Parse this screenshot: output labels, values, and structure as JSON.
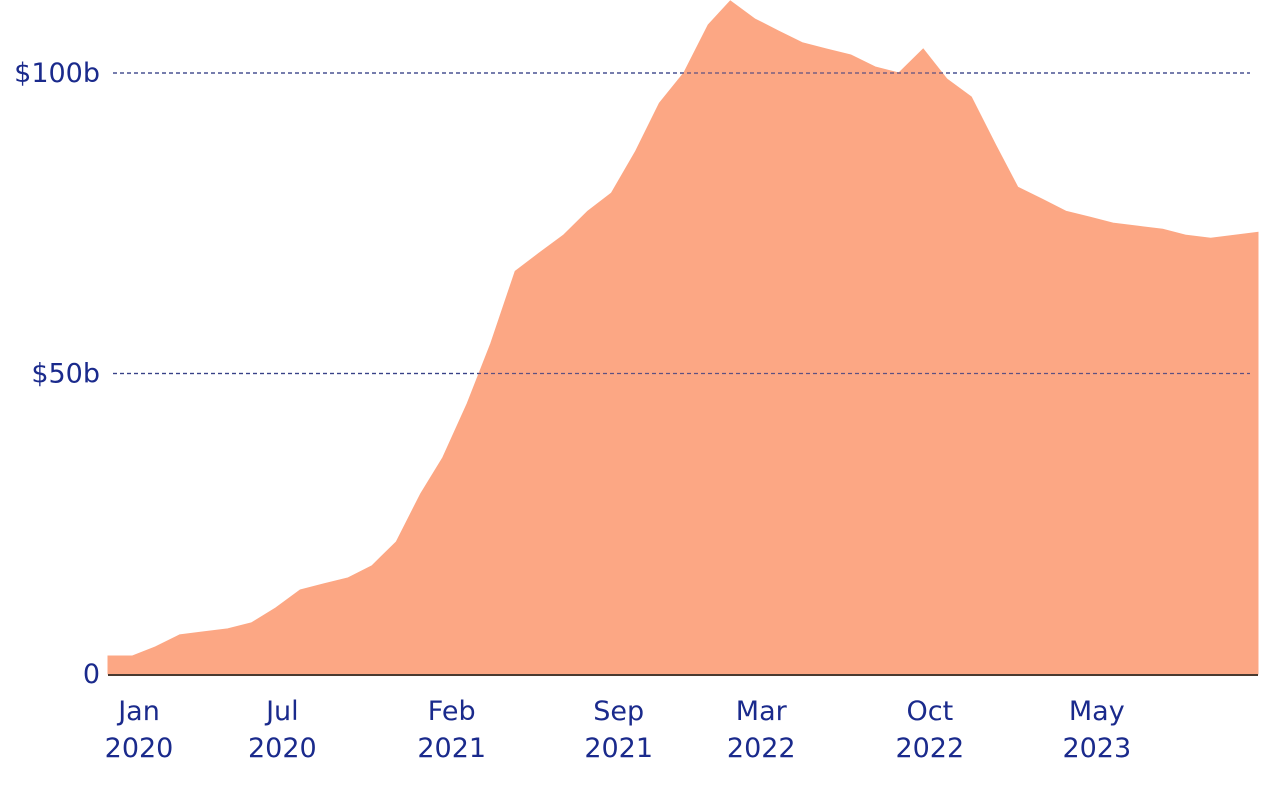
{
  "chart_data": {
    "type": "area",
    "title": "",
    "xlabel": "",
    "ylabel": "",
    "y_unit": "$b",
    "ylim": [
      0,
      110
    ],
    "xlim": [
      "2020-01-01",
      "2023-12-31"
    ],
    "grid": true,
    "grid_style": "dashed",
    "legend": false,
    "colors": {
      "area": "#fca784",
      "axis_text": "#1a2a8c",
      "grid": "#2a3580",
      "baseline": "#4a3a30"
    },
    "y_ticks": [
      {
        "value": 0,
        "label": "0"
      },
      {
        "value": 50,
        "label": "$50b"
      },
      {
        "value": 100,
        "label": "$100b"
      }
    ],
    "x_ticks": [
      {
        "date": "2020-01-01",
        "month": "Jan",
        "year": "2020"
      },
      {
        "date": "2020-07-01",
        "month": "Jul",
        "year": "2020"
      },
      {
        "date": "2021-02-01",
        "month": "Feb",
        "year": "2021"
      },
      {
        "date": "2021-09-01",
        "month": "Sep",
        "year": "2021"
      },
      {
        "date": "2022-03-01",
        "month": "Mar",
        "year": "2022"
      },
      {
        "date": "2022-10-01",
        "month": "Oct",
        "year": "2022"
      },
      {
        "date": "2023-05-01",
        "month": "May",
        "year": "2023"
      }
    ],
    "series": [
      {
        "points": [
          [
            "2020-01-01",
            3
          ],
          [
            "2020-02-01",
            3
          ],
          [
            "2020-03-01",
            4.5
          ],
          [
            "2020-04-01",
            6.5
          ],
          [
            "2020-05-01",
            7
          ],
          [
            "2020-06-01",
            7.5
          ],
          [
            "2020-07-01",
            8.5
          ],
          [
            "2020-08-01",
            11
          ],
          [
            "2020-09-01",
            14
          ],
          [
            "2020-10-01",
            15
          ],
          [
            "2020-11-01",
            16
          ],
          [
            "2020-12-01",
            18
          ],
          [
            "2021-01-01",
            22
          ],
          [
            "2021-02-01",
            30
          ],
          [
            "2021-03-01",
            36
          ],
          [
            "2021-04-01",
            45
          ],
          [
            "2021-05-01",
            55
          ],
          [
            "2021-06-01",
            67
          ],
          [
            "2021-07-01",
            70
          ],
          [
            "2021-08-01",
            73
          ],
          [
            "2021-09-01",
            77
          ],
          [
            "2021-10-01",
            80
          ],
          [
            "2021-11-01",
            87
          ],
          [
            "2021-12-01",
            95
          ],
          [
            "2022-01-01",
            100
          ],
          [
            "2022-02-01",
            108
          ],
          [
            "2022-03-01",
            112
          ],
          [
            "2022-04-01",
            109
          ],
          [
            "2022-05-01",
            107
          ],
          [
            "2022-06-01",
            105
          ],
          [
            "2022-07-01",
            104
          ],
          [
            "2022-08-01",
            103
          ],
          [
            "2022-09-01",
            101
          ],
          [
            "2022-10-01",
            100
          ],
          [
            "2022-11-01",
            104
          ],
          [
            "2022-12-01",
            99
          ],
          [
            "2023-01-01",
            96
          ],
          [
            "2023-02-01",
            88
          ],
          [
            "2023-03-01",
            81
          ],
          [
            "2023-04-01",
            79
          ],
          [
            "2023-05-01",
            77
          ],
          [
            "2023-06-01",
            76
          ],
          [
            "2023-07-01",
            75
          ],
          [
            "2023-08-01",
            74.5
          ],
          [
            "2023-09-01",
            74
          ],
          [
            "2023-10-01",
            73
          ],
          [
            "2023-11-01",
            72.5
          ],
          [
            "2023-12-31",
            73.5
          ]
        ]
      }
    ]
  }
}
